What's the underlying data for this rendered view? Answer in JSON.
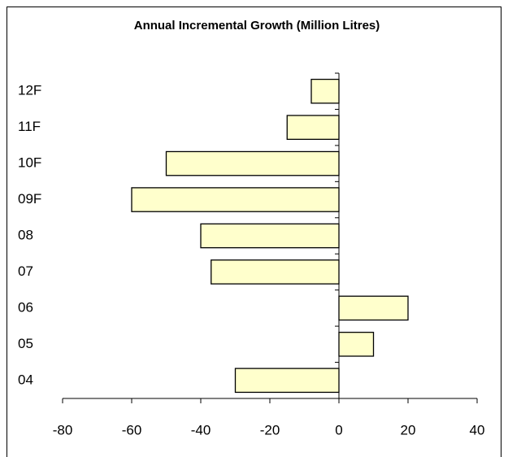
{
  "chart_data": {
    "type": "hbar",
    "title": "Annual Incremental Growth (Million Litres)",
    "categories": [
      "04",
      "05",
      "06",
      "07",
      "08",
      "09F",
      "10F",
      "11F",
      "12F"
    ],
    "values": [
      -30,
      10,
      20,
      -37,
      -40,
      -60,
      -50,
      -15,
      -8
    ],
    "color": "#ffffcc",
    "xlim": [
      -80,
      40
    ],
    "xticks": [
      -80,
      -60,
      -40,
      -20,
      0,
      20,
      40
    ],
    "grid": false
  }
}
